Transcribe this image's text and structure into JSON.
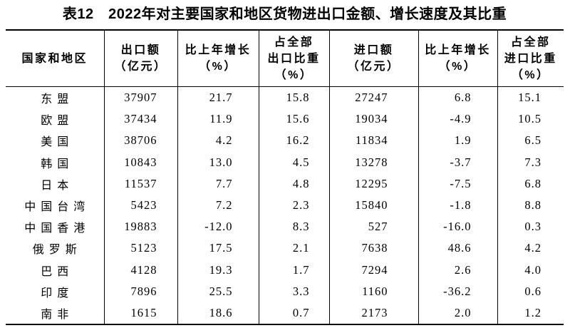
{
  "title": "表12　2022年对主要国家和地区货物进出口金额、增长速度及其比重",
  "colors": {
    "text": "#000000",
    "border": "#000000",
    "page_background": "#ffffff"
  },
  "table": {
    "columns": [
      {
        "key": "region",
        "label_lines": [
          "国家和地区"
        ]
      },
      {
        "key": "export_value",
        "label_lines": [
          "出口额",
          "（亿元）"
        ]
      },
      {
        "key": "export_growth",
        "label_lines": [
          "比上年增长",
          "（%）"
        ]
      },
      {
        "key": "export_share",
        "label_lines": [
          "占全部",
          "出口比重",
          "（%）"
        ]
      },
      {
        "key": "import_value",
        "label_lines": [
          "进口额",
          "（亿元）"
        ]
      },
      {
        "key": "import_growth",
        "label_lines": [
          "比上年增长",
          "（%）"
        ]
      },
      {
        "key": "import_share",
        "label_lines": [
          "占全部",
          "进口比重",
          "（%）"
        ]
      }
    ],
    "rows": [
      [
        "东盟",
        "37907",
        "21.7",
        "15.8",
        "27247",
        "6.8",
        "15.1"
      ],
      [
        "欧盟",
        "37434",
        "11.9",
        "15.6",
        "19034",
        "-4.9",
        "10.5"
      ],
      [
        "美国",
        "38706",
        "4.2",
        "16.2",
        "11834",
        "1.9",
        "6.5"
      ],
      [
        "韩国",
        "10843",
        "13.0",
        "4.5",
        "13278",
        "-3.7",
        "7.3"
      ],
      [
        "日本",
        "11537",
        "7.7",
        "4.8",
        "12295",
        "-7.5",
        "6.8"
      ],
      [
        "中国台湾",
        "5423",
        "7.2",
        "2.3",
        "15840",
        "-1.8",
        "8.8"
      ],
      [
        "中国香港",
        "19883",
        "-12.0",
        "8.3",
        "527",
        "-16.0",
        "0.3"
      ],
      [
        "俄罗斯",
        "5123",
        "17.5",
        "2.1",
        "7638",
        "48.6",
        "4.2"
      ],
      [
        "巴西",
        "4128",
        "19.3",
        "1.7",
        "7294",
        "2.6",
        "4.0"
      ],
      [
        "印度",
        "7896",
        "25.5",
        "3.3",
        "1160",
        "-36.2",
        "0.6"
      ],
      [
        "南非",
        "1615",
        "18.6",
        "0.7",
        "2173",
        "2.0",
        "1.2"
      ]
    ]
  }
}
